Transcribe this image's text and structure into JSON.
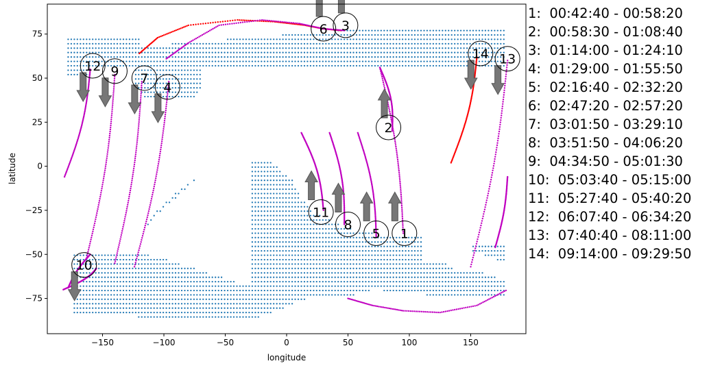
{
  "chart_data": {
    "type": "scatter",
    "xlabel": "longitude",
    "ylabel": "latitude",
    "xlim": [
      -195,
      195
    ],
    "ylim": [
      -95,
      92
    ],
    "xticks": [
      -150,
      -100,
      -50,
      0,
      50,
      100,
      150
    ],
    "yticks": [
      -75,
      -50,
      -25,
      0,
      25,
      50,
      75
    ],
    "xtick_labels": [
      "−150",
      "−100",
      "−50",
      "0",
      "50",
      "100",
      "150"
    ],
    "ytick_labels": [
      "−75",
      "−50",
      "−25",
      "0",
      "25",
      "50",
      "75"
    ],
    "grid": false,
    "colors": {
      "dots": "#1f77b4",
      "track_day": "#c000c0",
      "track_red": "#ff0000",
      "arrow": "#777777",
      "edge": "#000000"
    },
    "coverage_regions": [
      {
        "kind": "top_band",
        "lon_min": -178,
        "lon_max": 178,
        "lat_min": 55,
        "lat_max": 77
      },
      {
        "kind": "top_band_west_drop",
        "lon_min": -178,
        "lon_max": -160,
        "lat_min": 50,
        "lat_max": 55
      },
      {
        "kind": "top_band_lobe",
        "lon_min": -125,
        "lon_max": -70,
        "lat_min": 38,
        "lat_max": 55
      },
      {
        "kind": "southern_block",
        "polygon": [
          [
            -175,
            -85
          ],
          [
            -175,
            -48
          ],
          [
            -120,
            -48
          ],
          [
            -112,
            -45
          ],
          [
            -110,
            -55
          ],
          [
            -105,
            -45
          ],
          [
            -115,
            -35
          ],
          [
            -105,
            -25
          ],
          [
            -90,
            -15
          ],
          [
            -80,
            -10
          ],
          [
            -70,
            -5
          ],
          [
            -55,
            0
          ],
          [
            -30,
            2
          ],
          [
            -12,
            3
          ],
          [
            -8,
            0
          ],
          [
            5,
            -8
          ],
          [
            12,
            -18
          ],
          [
            20,
            -25
          ],
          [
            50,
            -35
          ],
          [
            70,
            -38
          ],
          [
            90,
            -40
          ],
          [
            110,
            -40
          ],
          [
            110,
            -55
          ],
          [
            130,
            -55
          ],
          [
            140,
            -60
          ],
          [
            160,
            -60
          ],
          [
            180,
            -65
          ],
          [
            180,
            -75
          ],
          [
            140,
            -75
          ],
          [
            100,
            -72
          ],
          [
            70,
            -70
          ],
          [
            50,
            -74
          ],
          [
            20,
            -74
          ],
          [
            0,
            -80
          ],
          [
            -30,
            -88
          ],
          [
            -140,
            -85
          ]
        ]
      },
      {
        "kind": "southern_cut_triangle",
        "polygon": [
          [
            -120,
            -48
          ],
          [
            -30,
            -68
          ],
          [
            -30,
            5
          ],
          [
            -55,
            5
          ],
          [
            -85,
            -15
          ],
          [
            -110,
            -30
          ]
        ]
      },
      {
        "kind": "east_islands",
        "polygon": [
          [
            150,
            -45
          ],
          [
            180,
            -45
          ],
          [
            180,
            -53
          ],
          [
            170,
            -53
          ],
          [
            150,
            -48
          ]
        ]
      }
    ],
    "passes": [
      {
        "id": "1",
        "label": "1",
        "time": "00:42:40 - 00:58:20",
        "color": "magenta",
        "lon0": 95,
        "lat0": -38,
        "lon1": 76,
        "lat1": 56,
        "arrow": "up",
        "marker": [
          96,
          -38
        ]
      },
      {
        "id": "2",
        "label": "2",
        "time": "00:58:30 - 01:08:40",
        "color": "magenta",
        "lon0": 76,
        "lat0": 56,
        "lon1": 86,
        "lat1": 20,
        "arrow": "up",
        "marker": [
          83,
          22
        ]
      },
      {
        "id": "3",
        "label": "3",
        "time": "01:14:00 - 01:24:10",
        "color": "magenta",
        "lon0": -55,
        "lat0": 60,
        "lon1": 48,
        "lat1": 78,
        "arrow": "up",
        "marker": [
          48,
          80
        ]
      },
      {
        "id": "4",
        "label": "4",
        "time": "01:29:00 - 01:55:50",
        "color": "magenta",
        "lon0": -124,
        "lat0": -57,
        "lon1": -96,
        "lat1": 48,
        "arrow": "down",
        "marker": [
          -97,
          45
        ]
      },
      {
        "id": "5",
        "label": "5",
        "time": "02:16:40 - 02:32:20",
        "color": "magenta",
        "lon0": 73,
        "lat0": -40,
        "lon1": 58,
        "lat1": 19,
        "arrow": "up",
        "marker": [
          73,
          -38
        ]
      },
      {
        "id": "6",
        "label": "6",
        "time": "02:47:20 - 02:57:20",
        "color": "red",
        "lon0": -120,
        "lat0": 65,
        "lon1": 45,
        "lat1": 78,
        "arrow": "up",
        "marker": [
          30,
          78
        ]
      },
      {
        "id": "7",
        "label": "7",
        "time": "03:01:50 - 03:29:10",
        "color": "magenta",
        "lon0": -140,
        "lat0": -55,
        "lon1": -118,
        "lat1": 48,
        "arrow": "down",
        "marker": [
          -116,
          50
        ]
      },
      {
        "id": "8",
        "label": "8",
        "time": "03:51:50 - 04:06:20",
        "color": "magenta",
        "lon0": 47,
        "lat0": -33,
        "lon1": 35,
        "lat1": 19,
        "arrow": "up",
        "marker": [
          50,
          -33
        ]
      },
      {
        "id": "9",
        "label": "9",
        "time": "04:34:50 - 05:01:30",
        "color": "magenta",
        "lon0": -163,
        "lat0": -52,
        "lon1": -140,
        "lat1": 52,
        "arrow": "down",
        "marker": [
          -140,
          54
        ]
      },
      {
        "id": "10",
        "label": "10",
        "time": "05:03:40 - 05:15:00",
        "color": "magenta",
        "lon0": -182,
        "lat0": -70,
        "lon1": -155,
        "lat1": -58,
        "arrow": "down",
        "marker": [
          -165,
          -56
        ]
      },
      {
        "id": "11",
        "label": "11",
        "time": "05:27:40 - 05:40:20",
        "color": "magenta",
        "lon0": 30,
        "lat0": -25,
        "lon1": 12,
        "lat1": 19,
        "arrow": "up",
        "marker": [
          28,
          -26
        ]
      },
      {
        "id": "12",
        "label": "12",
        "time": "06:07:40 - 06:34:20",
        "color": "magenta",
        "lon0": -181,
        "lat0": -6,
        "lon1": -160,
        "lat1": 55,
        "arrow": "down",
        "marker": [
          -158,
          57
        ]
      },
      {
        "id": "13",
        "label": "13",
        "time": "07:40:40 - 08:11:00",
        "color": "magenta",
        "lon0": 150,
        "lat0": -57,
        "lon1": 180,
        "lat1": 60,
        "arrow": "down",
        "marker": [
          180,
          61
        ]
      },
      {
        "id": "14",
        "label": "14",
        "time": "09:14:00 - 09:29:50",
        "color": "red",
        "lon0": 134,
        "lat0": 2,
        "lon1": 155,
        "lat1": 62,
        "arrow": "down",
        "marker": [
          158,
          64
        ]
      }
    ],
    "south_arc": [
      {
        "lon": 50,
        "lat": -75
      },
      {
        "lon": 70,
        "lat": -79
      },
      {
        "lon": 95,
        "lat": -82
      },
      {
        "lon": 125,
        "lat": -83
      },
      {
        "lon": 155,
        "lat": -79
      },
      {
        "lon": 180,
        "lat": -70
      }
    ],
    "lower_east_track": {
      "lon0": 170,
      "lat0": -46,
      "lon1": 180,
      "lat1": -6
    }
  },
  "legend": [
    "1:  00:42:40 - 00:58:20",
    "2:  00:58:30 - 01:08:40",
    "3:  01:14:00 - 01:24:10",
    "4:  01:29:00 - 01:55:50",
    "5:  02:16:40 - 02:32:20",
    "6:  02:47:20 - 02:57:20",
    "7:  03:01:50 - 03:29:10",
    "8:  03:51:50 - 04:06:20",
    "9:  04:34:50 - 05:01:30",
    "10:  05:03:40 - 05:15:00",
    "11:  05:27:40 - 05:40:20",
    "12:  06:07:40 - 06:34:20",
    "13:  07:40:40 - 08:11:00",
    "14:  09:14:00 - 09:29:50"
  ]
}
